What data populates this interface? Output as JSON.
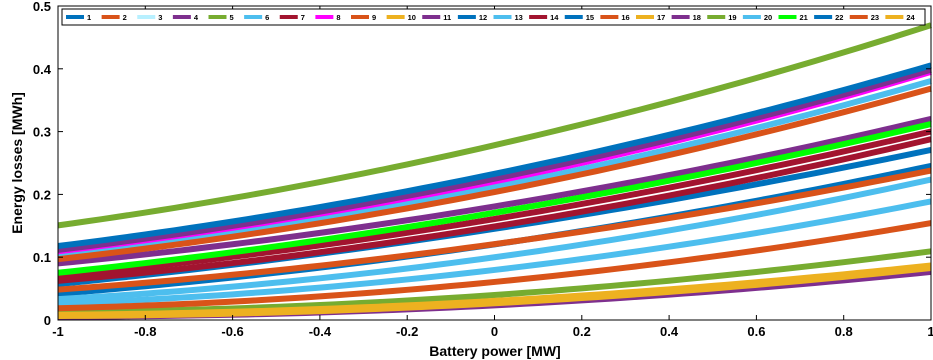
{
  "chart_data": {
    "type": "line",
    "xlabel": "Battery power [MW]",
    "ylabel": "Energy losses [MWh]",
    "xlim": [
      -1,
      1
    ],
    "ylim": [
      0,
      0.5
    ],
    "xticks": [
      -1,
      -0.8,
      -0.6,
      -0.4,
      -0.2,
      0,
      0.2,
      0.4,
      0.6,
      0.8,
      1
    ],
    "xtick_labels": [
      "-1",
      "-0.8",
      "-0.6",
      "-0.4",
      "-0.2",
      "0",
      "0.2",
      "0.4",
      "0.6",
      "0.8",
      "1"
    ],
    "yticks": [
      0,
      0.1,
      0.2,
      0.3,
      0.4,
      0.5
    ],
    "ytick_labels": [
      "0",
      "0.1",
      "0.2",
      "0.3",
      "0.4",
      "0.5"
    ],
    "grid": false,
    "legend_position": "top",
    "x": [
      -1,
      -0.5,
      0,
      0.5,
      1
    ],
    "series": [
      {
        "name": "1",
        "color": "#0072bd",
        "values": [
          0.005,
          0.012,
          0.025,
          0.048,
          0.08
        ]
      },
      {
        "name": "2",
        "color": "#d95319",
        "values": [
          0.005,
          0.012,
          0.025,
          0.048,
          0.08
        ]
      },
      {
        "name": "3",
        "color": "#b8f0ff",
        "values": [
          0.007,
          0.014,
          0.028,
          0.052,
          0.085
        ]
      },
      {
        "name": "4",
        "color": "#7e2f8e",
        "values": [
          0.005,
          0.011,
          0.023,
          0.045,
          0.077
        ]
      },
      {
        "name": "5",
        "color": "#77ac30",
        "values": [
          0.012,
          0.022,
          0.04,
          0.068,
          0.11
        ]
      },
      {
        "name": "6",
        "color": "#4dbeee",
        "values": [
          0.025,
          0.048,
          0.08,
          0.125,
          0.19
        ]
      },
      {
        "name": "7",
        "color": "#a2142f",
        "values": [
          0.07,
          0.11,
          0.16,
          0.225,
          0.3
        ]
      },
      {
        "name": "8",
        "color": "#ff00ff",
        "values": [
          0.108,
          0.156,
          0.22,
          0.3,
          0.395
        ]
      },
      {
        "name": "9",
        "color": "#d95319",
        "values": [
          0.018,
          0.035,
          0.06,
          0.1,
          0.155
        ]
      },
      {
        "name": "10",
        "color": "#edb120",
        "values": [
          0.006,
          0.013,
          0.026,
          0.05,
          0.083
        ]
      },
      {
        "name": "11",
        "color": "#7e2f8e",
        "values": [
          0.09,
          0.13,
          0.18,
          0.245,
          0.32
        ]
      },
      {
        "name": "12",
        "color": "#0072bd",
        "values": [
          0.058,
          0.095,
          0.145,
          0.205,
          0.27
        ]
      },
      {
        "name": "13",
        "color": "#4dbeee",
        "values": [
          0.1,
          0.148,
          0.21,
          0.29,
          0.38
        ]
      },
      {
        "name": "14",
        "color": "#a2142f",
        "values": [
          0.062,
          0.1,
          0.148,
          0.212,
          0.288
        ]
      },
      {
        "name": "15",
        "color": "#0072bd",
        "values": [
          0.042,
          0.075,
          0.12,
          0.178,
          0.245
        ]
      },
      {
        "name": "16",
        "color": "#d95319",
        "values": [
          0.048,
          0.08,
          0.12,
          0.174,
          0.238
        ]
      },
      {
        "name": "17",
        "color": "#edb120",
        "values": [
          0.007,
          0.015,
          0.029,
          0.053,
          0.086
        ]
      },
      {
        "name": "18",
        "color": "#7e2f8e",
        "values": [
          0.112,
          0.16,
          0.225,
          0.305,
          0.398
        ]
      },
      {
        "name": "19",
        "color": "#77ac30",
        "values": [
          0.15,
          0.208,
          0.278,
          0.365,
          0.47
        ]
      },
      {
        "name": "20",
        "color": "#4dbeee",
        "values": [
          0.032,
          0.062,
          0.1,
          0.152,
          0.225
        ]
      },
      {
        "name": "21",
        "color": "#00ff00",
        "values": [
          0.075,
          0.118,
          0.17,
          0.236,
          0.312
        ]
      },
      {
        "name": "22",
        "color": "#0072bd",
        "values": [
          0.118,
          0.168,
          0.232,
          0.313,
          0.405
        ]
      },
      {
        "name": "23",
        "color": "#d95319",
        "values": [
          0.097,
          0.143,
          0.203,
          0.28,
          0.368
        ]
      },
      {
        "name": "24",
        "color": "#edb120",
        "values": [
          0.008,
          0.016,
          0.03,
          0.054,
          0.087
        ]
      }
    ]
  }
}
